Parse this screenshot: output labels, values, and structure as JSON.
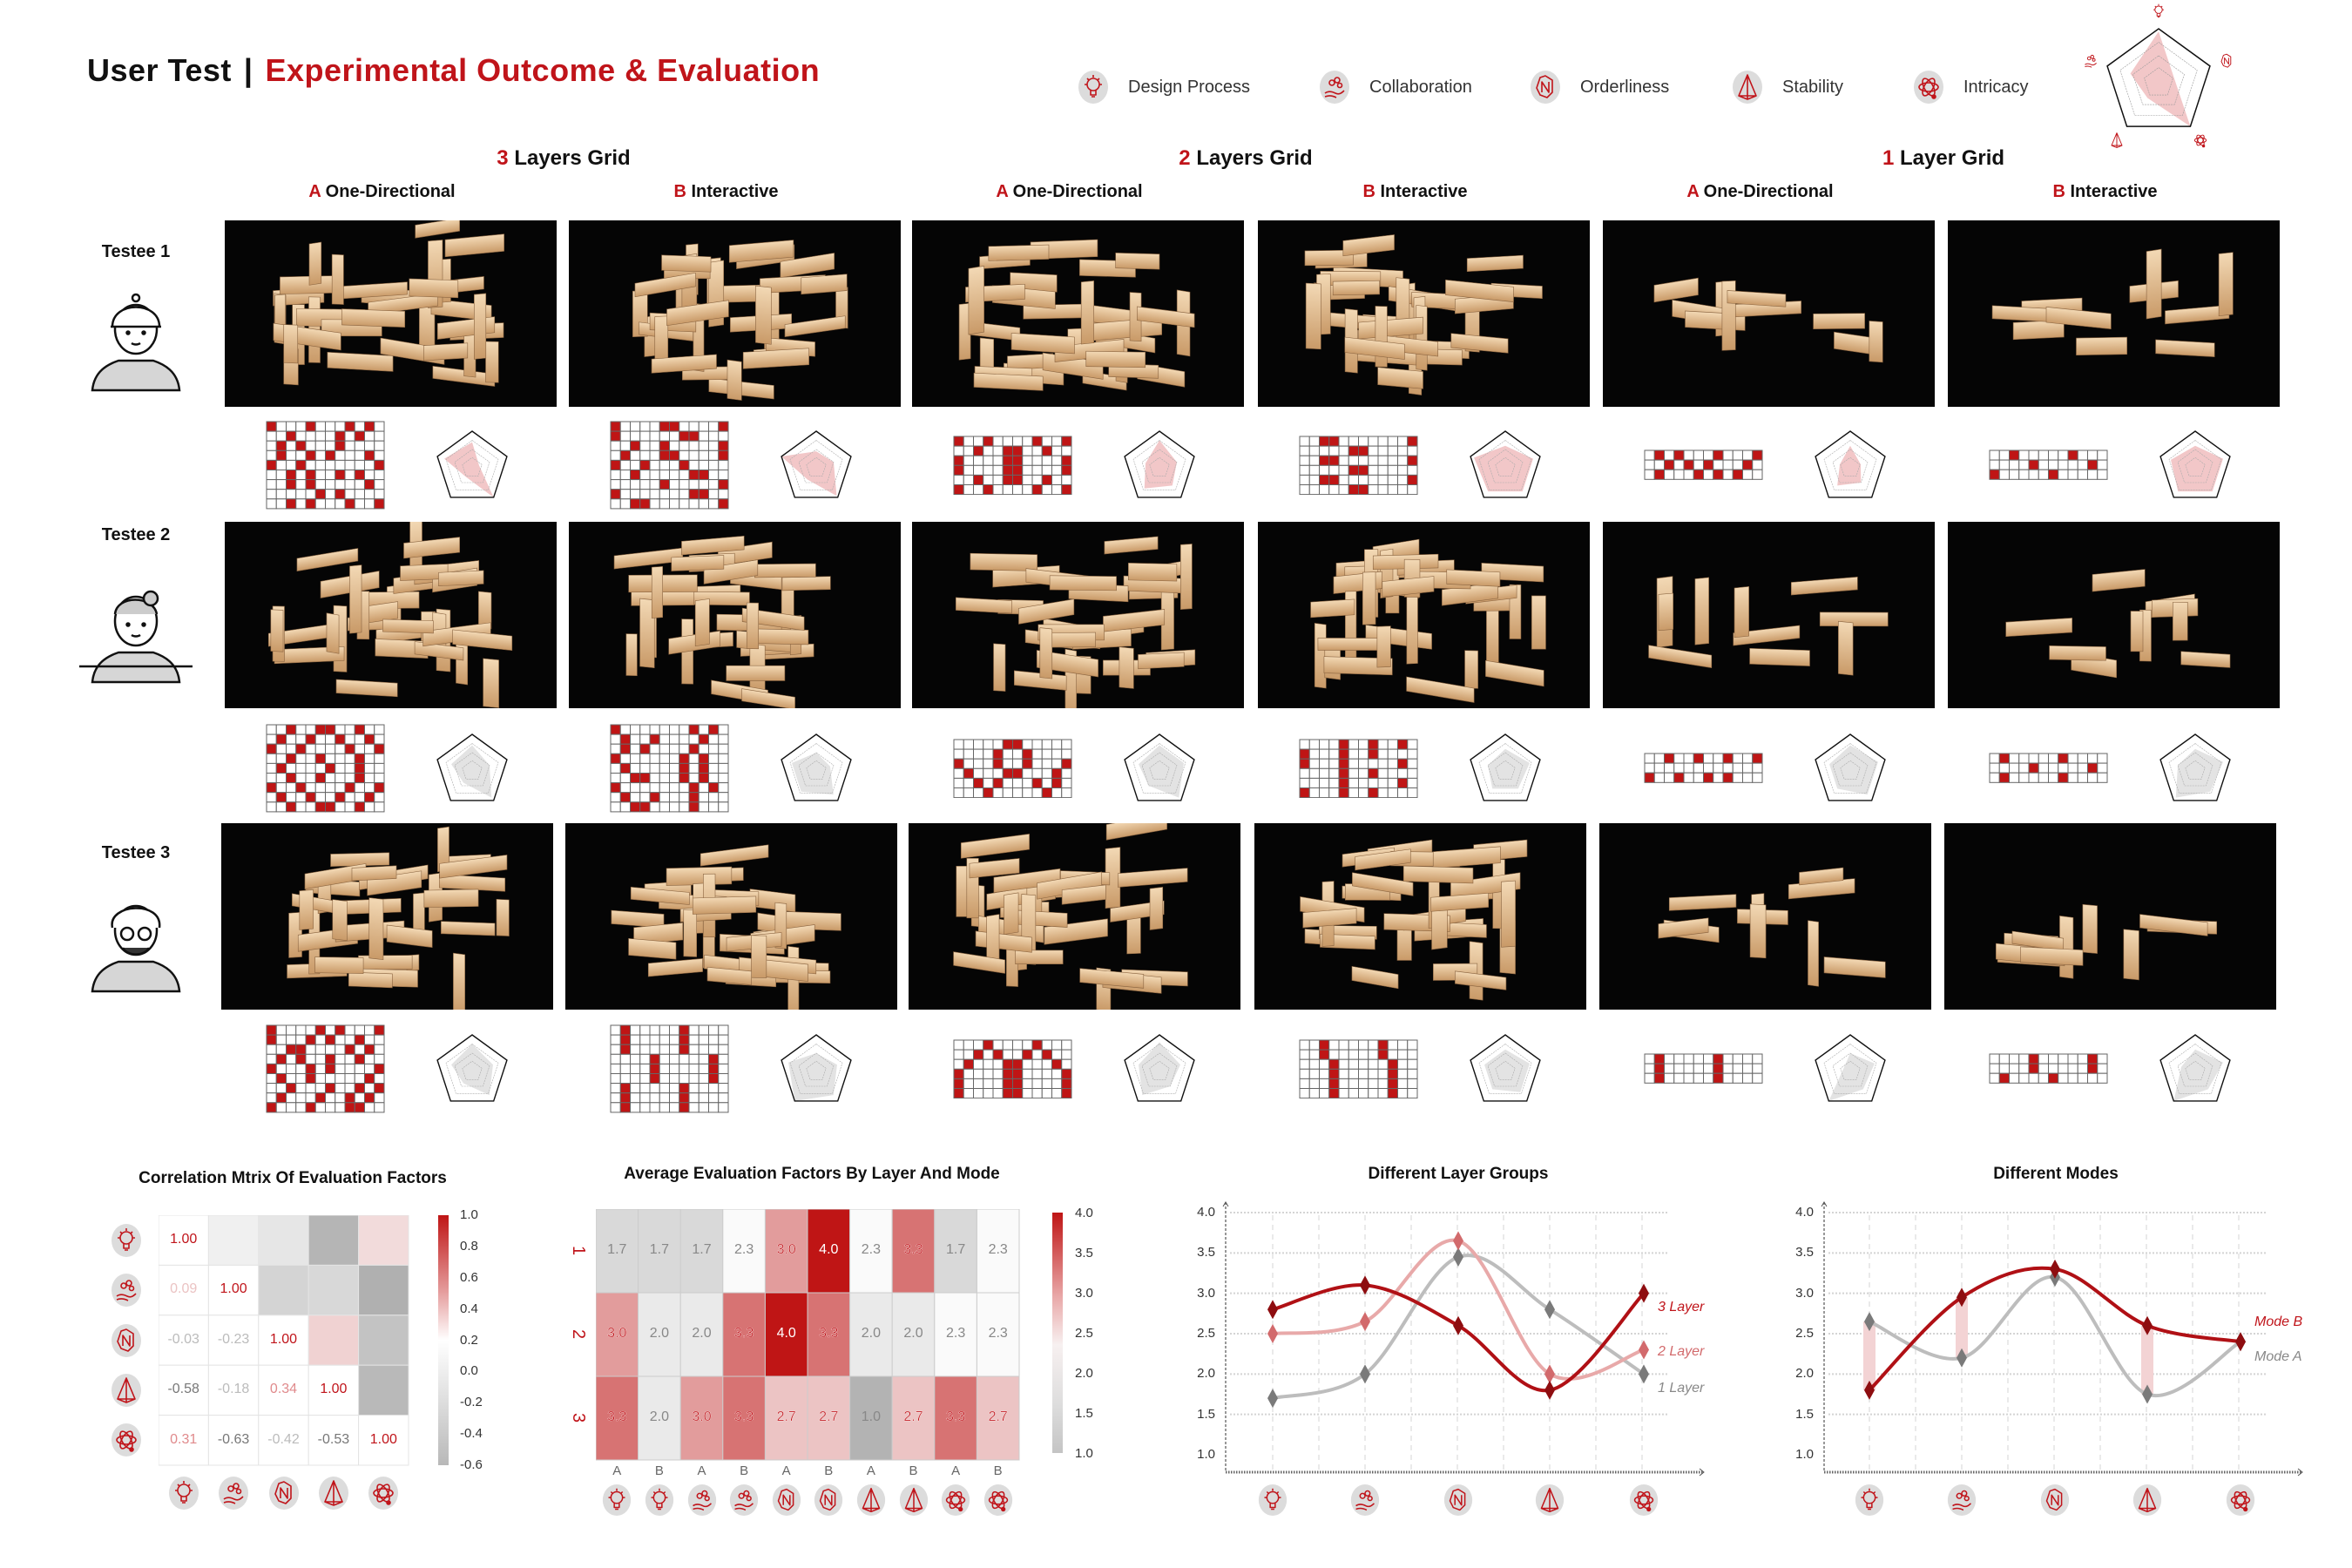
{
  "header": {
    "title_left": "User Test",
    "separator": "|",
    "title_right": "Experimental Outcome & Evaluation"
  },
  "legend": [
    {
      "icon": "bulb-icon",
      "label": "Design Process"
    },
    {
      "icon": "collaboration-icon",
      "label": "Collaboration"
    },
    {
      "icon": "orderliness-icon",
      "label": "Orderliness"
    },
    {
      "icon": "stability-icon",
      "label": "Stability"
    },
    {
      "icon": "intricacy-icon",
      "label": "Intricacy"
    }
  ],
  "colors": {
    "accent": "#c0141a",
    "gray": "#b3b3b3",
    "pink": "#f2c7c8",
    "dark_red": "#8e0d10"
  },
  "groups": [
    {
      "num": "3",
      "label": "Layers Grid",
      "modes": [
        {
          "letter": "A",
          "label": "One-Directional"
        },
        {
          "letter": "B",
          "label": "Interactive"
        }
      ]
    },
    {
      "num": "2",
      "label": "Layers Grid",
      "modes": [
        {
          "letter": "A",
          "label": "One-Directional"
        },
        {
          "letter": "B",
          "label": "Interactive"
        }
      ]
    },
    {
      "num": "1",
      "label": "Layer Grid",
      "modes": [
        {
          "letter": "A",
          "label": "One-Directional"
        },
        {
          "letter": "B",
          "label": "Interactive"
        }
      ]
    }
  ],
  "testees": [
    {
      "name": "Testee 1",
      "highlight": true,
      "results": [
        {
          "grid": [
            "100010001010",
            "001000010100",
            "010100010000",
            "010010100010",
            "100100000001",
            "001010010100",
            "001010000010",
            "000001010000",
            "001010001001"
          ],
          "radar": [
            0.7,
            0.8,
            0.2,
            0.3,
            1.0
          ]
        },
        {
          "grid": [
            "100001100001",
            "100000011000",
            "001001000001",
            "010001100001",
            "100100010000",
            "001000001100",
            "000001000001",
            "100000001100",
            "001100000001"
          ],
          "radar": [
            0.45,
            1.0,
            0.5,
            0.4,
            0.95
          ]
        },
        {
          "grid": [
            "100100001001",
            "001001100100",
            "100001100001",
            "100001100001",
            "001001100100",
            "100100001001"
          ],
          "radar": [
            0.75,
            0.4,
            0.5,
            0.7,
            0.6
          ]
        },
        {
          "grid": [
            "001100000001",
            "000001100000",
            "001100000001",
            "000001100000",
            "001100000001",
            "000001100000"
          ],
          "radar": [
            0.6,
            0.9,
            0.8,
            0.8,
            0.8
          ]
        },
        {
          "grid": [
            "010100010001",
            "001010100010",
            "010001010100"
          ],
          "radar": [
            0.6,
            0.3,
            0.3,
            0.6,
            0.5
          ]
        },
        {
          "grid": [
            "001000001000",
            "000010000010",
            "100000100000"
          ],
          "radar": [
            0.6,
            0.7,
            0.8,
            0.8,
            0.8
          ]
        }
      ]
    },
    {
      "name": "Testee 2",
      "highlight": false,
      "results": [
        {
          "grid": [
            "001001100100",
            "010010010010",
            "100100001001",
            "001001000100",
            "010000100100",
            "001001000100",
            "100100001001",
            "010010010010",
            "001001100100"
          ],
          "radar": [
            0.7,
            0.6,
            0.5,
            0.4,
            0.9
          ]
        },
        {
          "grid": [
            "100000001010",
            "010010000100",
            "010100001000",
            "100000010100",
            "010000010100",
            "001100010100",
            "100000001010",
            "010010001000",
            "001100001000"
          ],
          "radar": [
            0.5,
            0.7,
            0.4,
            0.7,
            0.8
          ]
        },
        {
          "grid": [
            "000001100000",
            "000010010000",
            "100010010001",
            "010001100010",
            "001010001010",
            "000100000100"
          ],
          "radar": [
            0.7,
            0.6,
            0.7,
            0.5,
            0.9
          ]
        },
        {
          "grid": [
            "000010010010",
            "100010010000",
            "100010000010",
            "000010010000",
            "000010000010",
            "100010010000"
          ],
          "radar": [
            0.6,
            0.5,
            0.7,
            0.6,
            0.6
          ]
        },
        {
          "grid": [
            "001001001001",
            "000000000000",
            "100100101000"
          ],
          "radar": [
            0.7,
            0.6,
            0.8,
            0.6,
            0.8
          ]
        },
        {
          "grid": [
            "010000010000",
            "000010000010",
            "010000010000"
          ],
          "radar": [
            0.6,
            0.5,
            0.8,
            0.9,
            0.7
          ]
        }
      ]
    },
    {
      "name": "Testee 3",
      "highlight": false,
      "results": [
        {
          "grid": [
            "100001010001",
            "100010100100",
            "001100001010",
            "010100100100",
            "100010100001",
            "010010000010",
            "001000100101",
            "010001001010",
            "100010001100"
          ],
          "radar": [
            0.75,
            0.6,
            0.6,
            0.4,
            0.8
          ]
        },
        {
          "grid": [
            "010000010000",
            "010000010000",
            "010000010000",
            "000010000010",
            "000010000010",
            "000010000010",
            "010000010000",
            "010000010000",
            "010000010000"
          ],
          "radar": [
            0.5,
            0.8,
            0.6,
            1.0,
            0.8
          ]
        },
        {
          "grid": [
            "000100001000",
            "001010010100",
            "010001100010",
            "100001100001",
            "100001100001",
            "100001100001"
          ],
          "radar": [
            0.8,
            0.6,
            0.6,
            0.8,
            0.5
          ]
        },
        {
          "grid": [
            "001000001000",
            "001000001000",
            "000100000100",
            "000100000100",
            "000100000100",
            "000100000100"
          ],
          "radar": [
            0.6,
            0.6,
            0.7,
            0.6,
            0.7
          ]
        },
        {
          "grid": [
            "010000010000",
            "010000010000",
            "010000010000"
          ],
          "radar": [
            0.5,
            0.2,
            0.7,
            1.0,
            0.6
          ]
        },
        {
          "grid": [
            "000010000010",
            "000010000010",
            "010000100000"
          ],
          "radar": [
            0.6,
            0.4,
            0.8,
            1.0,
            0.6
          ]
        }
      ]
    }
  ],
  "correlation": {
    "title": "Correlation Mtrix Of Evaluation  Factors",
    "rows": [
      [
        "1.00"
      ],
      [
        "0.09",
        "1.00"
      ],
      [
        "-0.03",
        "-0.23",
        "1.00"
      ],
      [
        "-0.58",
        "-0.18",
        "0.34",
        "1.00"
      ],
      [
        "0.31",
        "-0.63",
        "-0.42",
        "-0.53",
        "1.00"
      ]
    ],
    "colorbar_ticks": [
      "1.0",
      "0.8",
      "0.6",
      "0.4",
      "0.2",
      "0.0",
      "-0.2",
      "-0.4",
      "-0.6"
    ],
    "range": [
      -0.6,
      1.0
    ]
  },
  "average": {
    "title": "Average Evaluation Factors By Layer And Mode",
    "row_labels": [
      "1",
      "2",
      "3"
    ],
    "col_labels": [
      "A",
      "B",
      "A",
      "B",
      "A",
      "B",
      "A",
      "B",
      "A",
      "B"
    ],
    "values": [
      [
        "1.7",
        "1.7",
        "1.7",
        "2.3",
        "3.0",
        "4.0",
        "2.3",
        "3.3",
        "1.7",
        "2.3"
      ],
      [
        "3.0",
        "2.0",
        "2.0",
        "3.3",
        "4.0",
        "3.3",
        "2.0",
        "2.0",
        "2.3",
        "2.3"
      ],
      [
        "3.3",
        "2.0",
        "3.0",
        "3.3",
        "2.7",
        "2.7",
        "1.0",
        "2.7",
        "3.3",
        "2.7"
      ]
    ],
    "colorbar_ticks": [
      "4.0",
      "3.5",
      "3.0",
      "2.5",
      "2.0",
      "1.5",
      "1.0"
    ],
    "range": [
      1.0,
      4.0
    ]
  },
  "chart_data": [
    {
      "type": "line",
      "title": "Different Layer Groups",
      "categories": [
        "Design Process",
        "Collaboration",
        "Orderliness",
        "Stability",
        "Intricacy"
      ],
      "ylim": [
        1.0,
        4.0
      ],
      "yticks": [
        "4.0",
        "3.5",
        "3.0",
        "2.5",
        "2.0",
        "1.5",
        "1.0"
      ],
      "grid": true,
      "legend": "right",
      "series": [
        {
          "name": "3 Layer",
          "values": [
            2.8,
            3.1,
            2.6,
            1.8,
            3.0
          ],
          "color": "#b01015"
        },
        {
          "name": "2 Layer",
          "values": [
            2.5,
            2.65,
            3.65,
            2.0,
            2.3
          ],
          "color": "#e8a9a9"
        },
        {
          "name": "1 Layer",
          "values": [
            1.7,
            2.0,
            3.45,
            2.8,
            2.0
          ],
          "color": "#bdbdbd"
        }
      ]
    },
    {
      "type": "line",
      "title": "Different Modes",
      "categories": [
        "Design Process",
        "Collaboration",
        "Orderliness",
        "Stability",
        "Intricacy"
      ],
      "ylim": [
        1.0,
        4.0
      ],
      "yticks": [
        "4.0",
        "3.5",
        "3.0",
        "2.5",
        "2.0",
        "1.5",
        "1.0"
      ],
      "grid": true,
      "legend": "right",
      "series": [
        {
          "name": "Mode B",
          "values": [
            1.8,
            2.95,
            3.3,
            2.6,
            2.4
          ],
          "color": "#b01015"
        },
        {
          "name": "Mode A",
          "values": [
            2.65,
            2.2,
            3.2,
            1.75,
            2.4
          ],
          "color": "#bdbdbd"
        }
      ]
    }
  ]
}
